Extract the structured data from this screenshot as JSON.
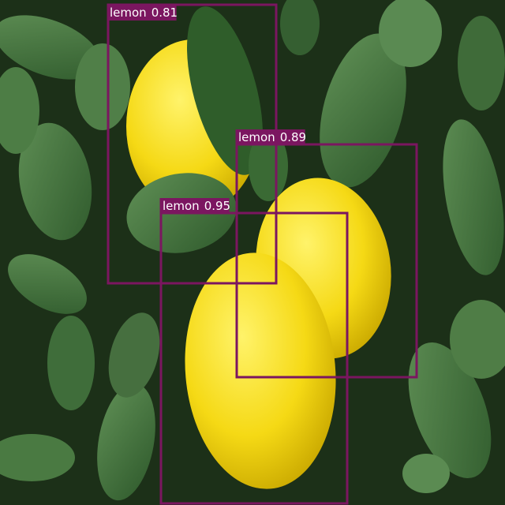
{
  "detections": [
    {
      "label": "lemon",
      "score": 0.81
    },
    {
      "label": "lemon",
      "score": 0.89
    },
    {
      "label": "lemon",
      "score": 0.95
    }
  ]
}
